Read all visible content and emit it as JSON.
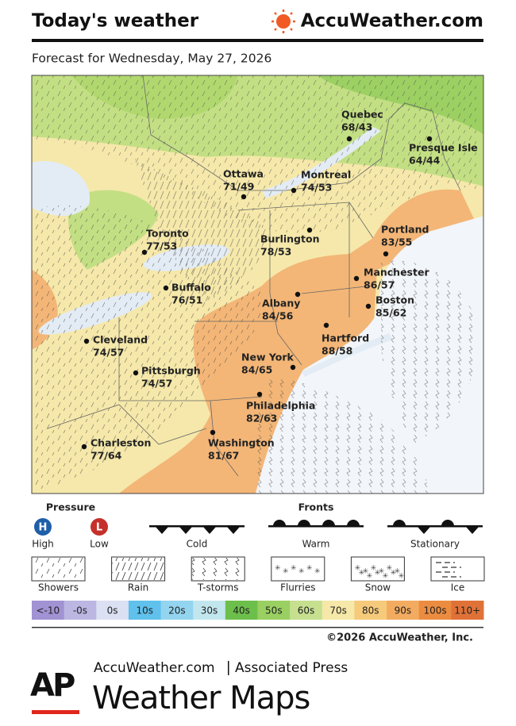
{
  "header": {
    "title": "Today's weather",
    "brand": "AccuWeather.com",
    "subtitle": "Forecast for Wednesday, May 27, 2026"
  },
  "cities": [
    {
      "name": "Quebec",
      "temps": "68/43"
    },
    {
      "name": "Presque Isle",
      "temps": "64/44"
    },
    {
      "name": "Ottawa",
      "temps": "71/49"
    },
    {
      "name": "Montreal",
      "temps": "74/53"
    },
    {
      "name": "Toronto",
      "temps": "77/53"
    },
    {
      "name": "Burlington",
      "temps": "78/53"
    },
    {
      "name": "Portland",
      "temps": "83/55"
    },
    {
      "name": "Buffalo",
      "temps": "76/51"
    },
    {
      "name": "Manchester",
      "temps": "86/57"
    },
    {
      "name": "Albany",
      "temps": "84/56"
    },
    {
      "name": "Boston",
      "temps": "85/62"
    },
    {
      "name": "Cleveland",
      "temps": "74/57"
    },
    {
      "name": "Hartford",
      "temps": "88/58"
    },
    {
      "name": "New York",
      "temps": "84/65"
    },
    {
      "name": "Pittsburgh",
      "temps": "74/57"
    },
    {
      "name": "Philadelphia",
      "temps": "82/63"
    },
    {
      "name": "Charleston",
      "temps": "77/64"
    },
    {
      "name": "Washington",
      "temps": "81/67"
    }
  ],
  "legend": {
    "pressure": {
      "title": "Pressure",
      "items": [
        {
          "symbol": "H",
          "label": "High"
        },
        {
          "symbol": "L",
          "label": "Low"
        }
      ]
    },
    "fronts": {
      "title": "Fronts",
      "items": [
        "Cold",
        "Warm",
        "Stationary"
      ]
    },
    "precipitation": [
      "Showers",
      "Rain",
      "T-storms",
      "Flurries",
      "Snow",
      "Ice"
    ],
    "temperature_scale": [
      {
        "label": "<-10",
        "color": "#a192d3"
      },
      {
        "label": "-0s",
        "color": "#bcb6e2"
      },
      {
        "label": "0s",
        "color": "#dbe0f2"
      },
      {
        "label": "10s",
        "color": "#5fc1ec"
      },
      {
        "label": "20s",
        "color": "#93d4ef"
      },
      {
        "label": "30s",
        "color": "#c2e6ee"
      },
      {
        "label": "40s",
        "color": "#6dbf4b"
      },
      {
        "label": "50s",
        "color": "#9ad062"
      },
      {
        "label": "60s",
        "color": "#c6e090"
      },
      {
        "label": "70s",
        "color": "#f5e8a8"
      },
      {
        "label": "80s",
        "color": "#f6ca7b"
      },
      {
        "label": "90s",
        "color": "#f3ab60"
      },
      {
        "label": "100s",
        "color": "#ec8c40"
      },
      {
        "label": "110+",
        "color": "#e07238"
      }
    ]
  },
  "copyright": "©2026 AccuWeather, Inc.",
  "footer": {
    "logo": "AP",
    "sources": [
      "AccuWeather.com",
      "Associated Press"
    ],
    "title": "Weather Maps"
  }
}
